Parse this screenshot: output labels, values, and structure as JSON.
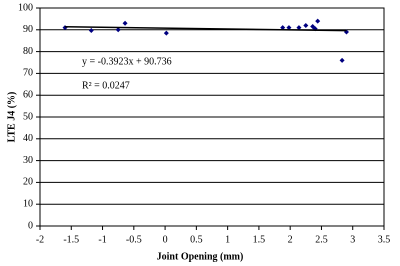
{
  "chart_data": {
    "type": "scatter",
    "xlabel": "Joint Opening (mm)",
    "ylabel": "LTE J4 (%)",
    "annotations": [
      "y = -0.3923x + 90.736",
      "R² = 0.0247"
    ],
    "xlim": [
      -2,
      3.5
    ],
    "xticks": [
      -2,
      -1.5,
      -1,
      -0.5,
      0,
      0.5,
      1,
      1.5,
      2,
      2.5,
      3,
      3.5
    ],
    "ylim": [
      0,
      100
    ],
    "yticks": [
      0,
      10,
      20,
      30,
      40,
      50,
      60,
      70,
      80,
      90,
      100
    ],
    "grid": true,
    "series": [
      {
        "type": "scatter",
        "color": "#000080",
        "x": [
          -1.6,
          -1.18,
          -0.75,
          -0.64,
          0.02,
          1.88,
          1.98,
          2.14,
          2.25,
          2.36,
          2.44,
          2.4,
          2.83,
          2.9
        ],
        "values": [
          91,
          89.7,
          90,
          93,
          88.5,
          91,
          91,
          91,
          92,
          91.5,
          94,
          90.5,
          76,
          89
        ]
      },
      {
        "type": "line",
        "color": "#000000",
        "x": [
          -1.6,
          2.9
        ],
        "values": [
          91.4,
          89.6
        ]
      }
    ]
  }
}
